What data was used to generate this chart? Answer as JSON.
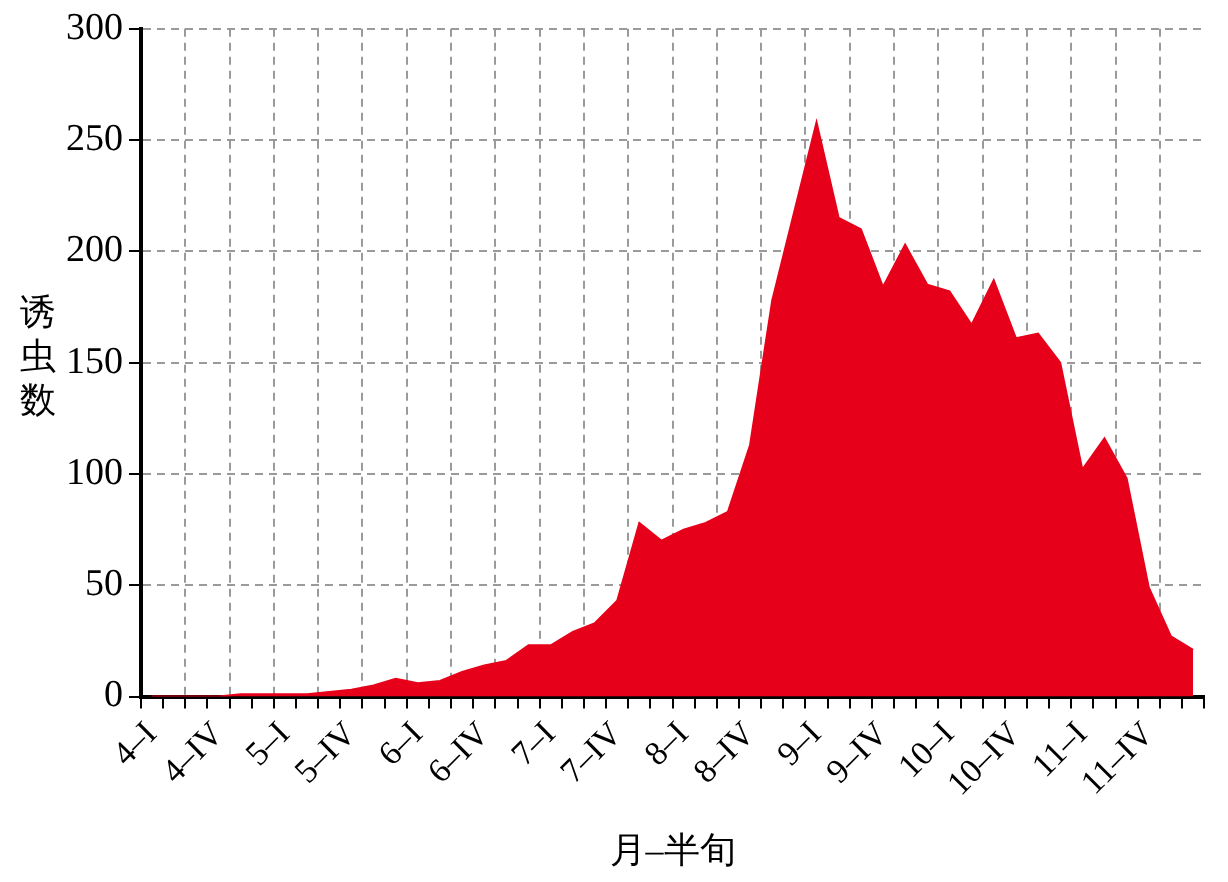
{
  "chart_data": {
    "type": "area",
    "xlabel": "月–半旬",
    "ylabel": "诱虫数",
    "categories": [
      "4–I",
      null,
      null,
      "4–IV",
      null,
      null,
      "5–I",
      null,
      null,
      "5–IV",
      null,
      null,
      "6–I",
      null,
      null,
      "6–IV",
      null,
      null,
      "7–I",
      null,
      null,
      "7–IV",
      null,
      null,
      "8–I",
      null,
      null,
      "8–IV",
      null,
      null,
      "9–I",
      null,
      null,
      "9–IV",
      null,
      null,
      "10–I",
      null,
      null,
      "10–IV",
      null,
      null,
      "11–I",
      null,
      null,
      "11–IV",
      null,
      null
    ],
    "series": [
      {
        "color": "#e60019",
        "values": [
          0,
          0,
          0,
          0,
          1,
          1,
          1,
          1,
          2,
          3,
          5,
          8,
          6,
          7,
          11,
          14,
          16,
          23,
          23,
          29,
          33,
          43,
          78,
          70,
          75,
          78,
          83,
          113,
          178,
          218,
          258,
          215,
          210,
          184,
          203,
          185,
          182,
          167,
          187,
          161,
          163,
          150,
          102,
          116,
          98,
          49,
          27,
          21
        ]
      }
    ],
    "ylim": [
      0,
      300
    ],
    "yticks": [
      0,
      50,
      100,
      150,
      200,
      250,
      300
    ],
    "grid": true
  }
}
